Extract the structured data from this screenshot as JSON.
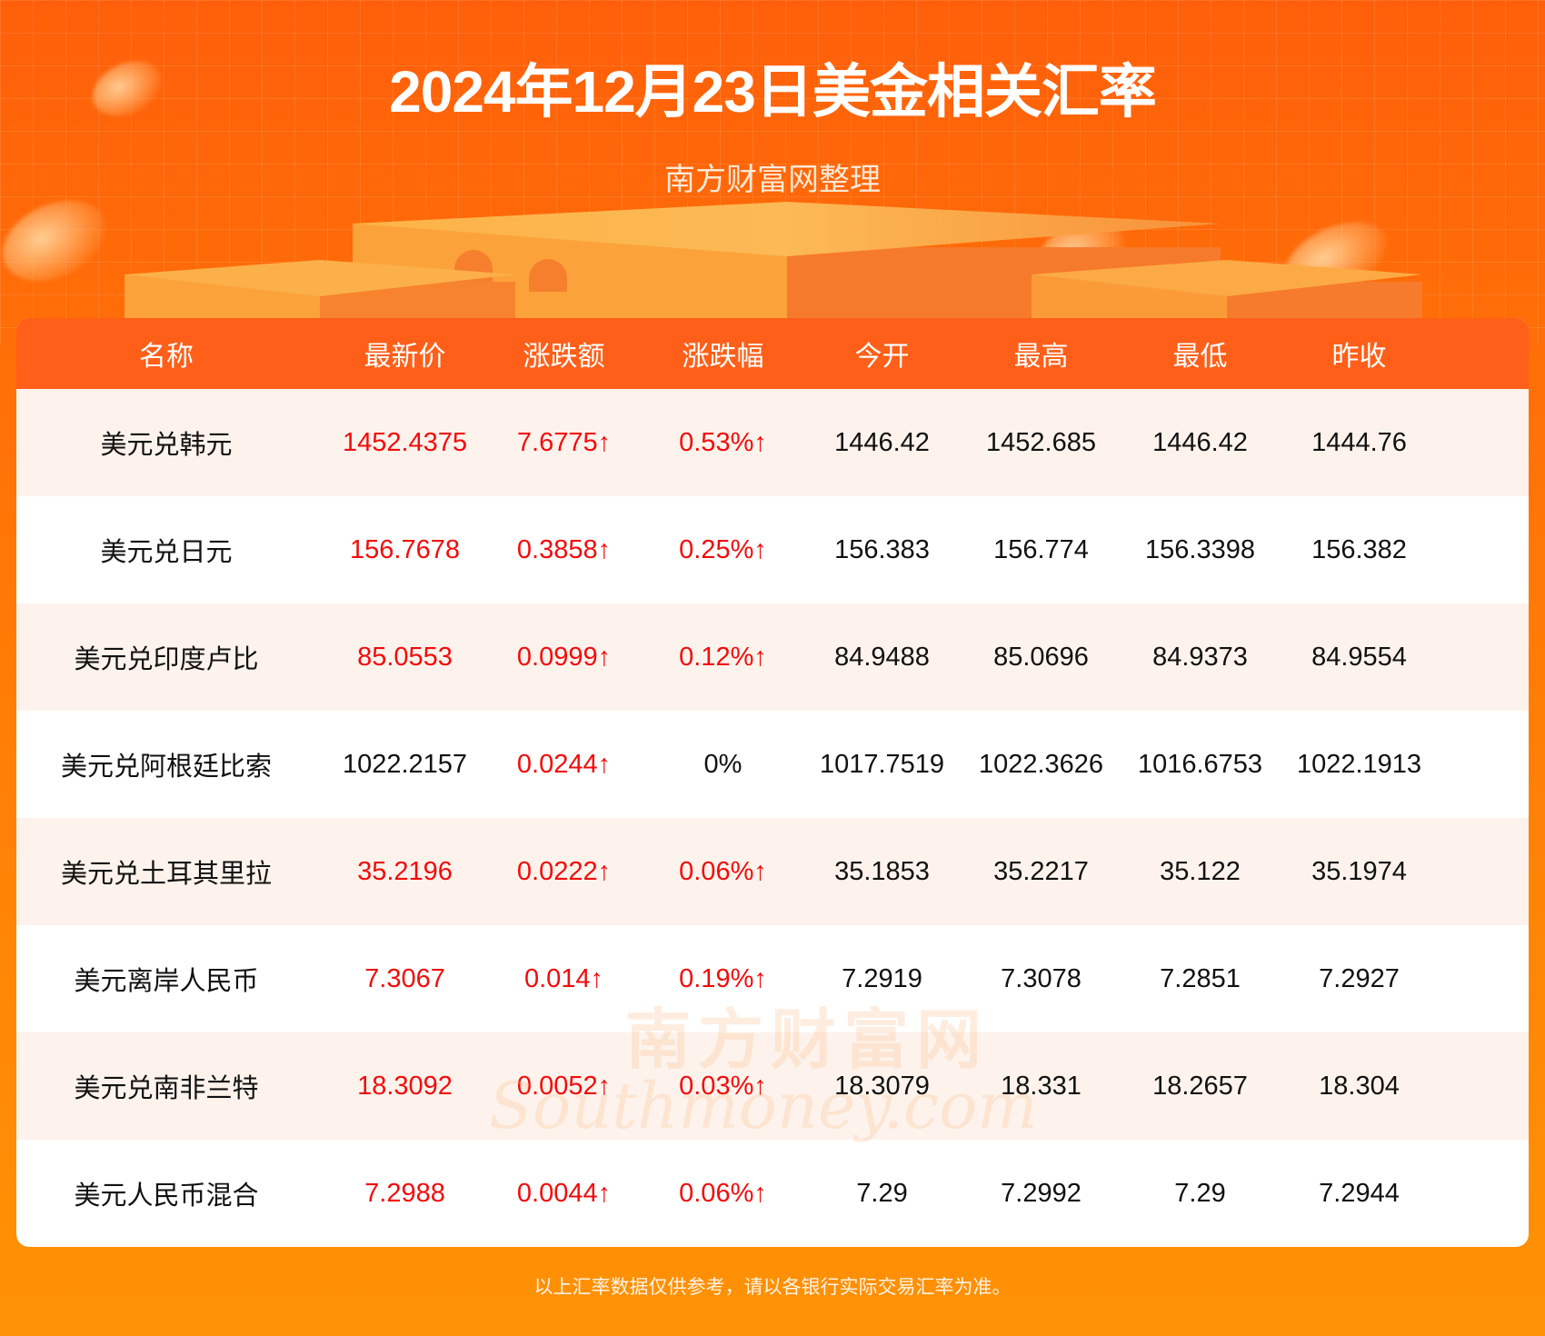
{
  "header": {
    "title": "2024年12月23日美金相关汇率",
    "subtitle": "南方财富网整理"
  },
  "colors": {
    "background_top": "#ff5f0a",
    "background_bottom": "#ff9205",
    "header_row": "#ff5f18",
    "alt_row": "#fdf3ec",
    "up": "#f20c0c",
    "neutral": "#111111"
  },
  "table": {
    "columns": [
      "名称",
      "最新价",
      "涨跌额",
      "涨跌幅",
      "今开",
      "最高",
      "最低",
      "昨收"
    ],
    "rows": [
      {
        "name": "美元兑韩元",
        "latest": "1452.4375",
        "change": "7.6775↑",
        "change_pct": "0.53%↑",
        "open": "1446.42",
        "high": "1452.685",
        "low": "1446.42",
        "prev_close": "1444.76",
        "latest_trend": "up",
        "change_trend": "up",
        "pct_trend": "up"
      },
      {
        "name": "美元兑日元",
        "latest": "156.7678",
        "change": "0.3858↑",
        "change_pct": "0.25%↑",
        "open": "156.383",
        "high": "156.774",
        "low": "156.3398",
        "prev_close": "156.382",
        "latest_trend": "up",
        "change_trend": "up",
        "pct_trend": "up"
      },
      {
        "name": "美元兑印度卢比",
        "latest": "85.0553",
        "change": "0.0999↑",
        "change_pct": "0.12%↑",
        "open": "84.9488",
        "high": "85.0696",
        "low": "84.9373",
        "prev_close": "84.9554",
        "latest_trend": "up",
        "change_trend": "up",
        "pct_trend": "up"
      },
      {
        "name": "美元兑阿根廷比索",
        "latest": "1022.2157",
        "change": "0.0244↑",
        "change_pct": "0%",
        "open": "1017.7519",
        "high": "1022.3626",
        "low": "1016.6753",
        "prev_close": "1022.1913",
        "latest_trend": "neutral",
        "change_trend": "up",
        "pct_trend": "neutral"
      },
      {
        "name": "美元兑土耳其里拉",
        "latest": "35.2196",
        "change": "0.0222↑",
        "change_pct": "0.06%↑",
        "open": "35.1853",
        "high": "35.2217",
        "low": "35.122",
        "prev_close": "35.1974",
        "latest_trend": "up",
        "change_trend": "up",
        "pct_trend": "up"
      },
      {
        "name": "美元离岸人民币",
        "latest": "7.3067",
        "change": "0.014↑",
        "change_pct": "0.19%↑",
        "open": "7.2919",
        "high": "7.3078",
        "low": "7.2851",
        "prev_close": "7.2927",
        "latest_trend": "up",
        "change_trend": "up",
        "pct_trend": "up"
      },
      {
        "name": "美元兑南非兰特",
        "latest": "18.3092",
        "change": "0.0052↑",
        "change_pct": "0.03%↑",
        "open": "18.3079",
        "high": "18.331",
        "low": "18.2657",
        "prev_close": "18.304",
        "latest_trend": "up",
        "change_trend": "up",
        "pct_trend": "up"
      },
      {
        "name": "美元人民币混合",
        "latest": "7.2988",
        "change": "0.0044↑",
        "change_pct": "0.06%↑",
        "open": "7.29",
        "high": "7.2992",
        "low": "7.29",
        "prev_close": "7.2944",
        "latest_trend": "up",
        "change_trend": "up",
        "pct_trend": "up"
      }
    ]
  },
  "watermark": {
    "cn": "南方财富网",
    "en": "Southmoney.com"
  },
  "footer": {
    "note": "以上汇率数据仅供参考，请以各银行实际交易汇率为准。"
  }
}
